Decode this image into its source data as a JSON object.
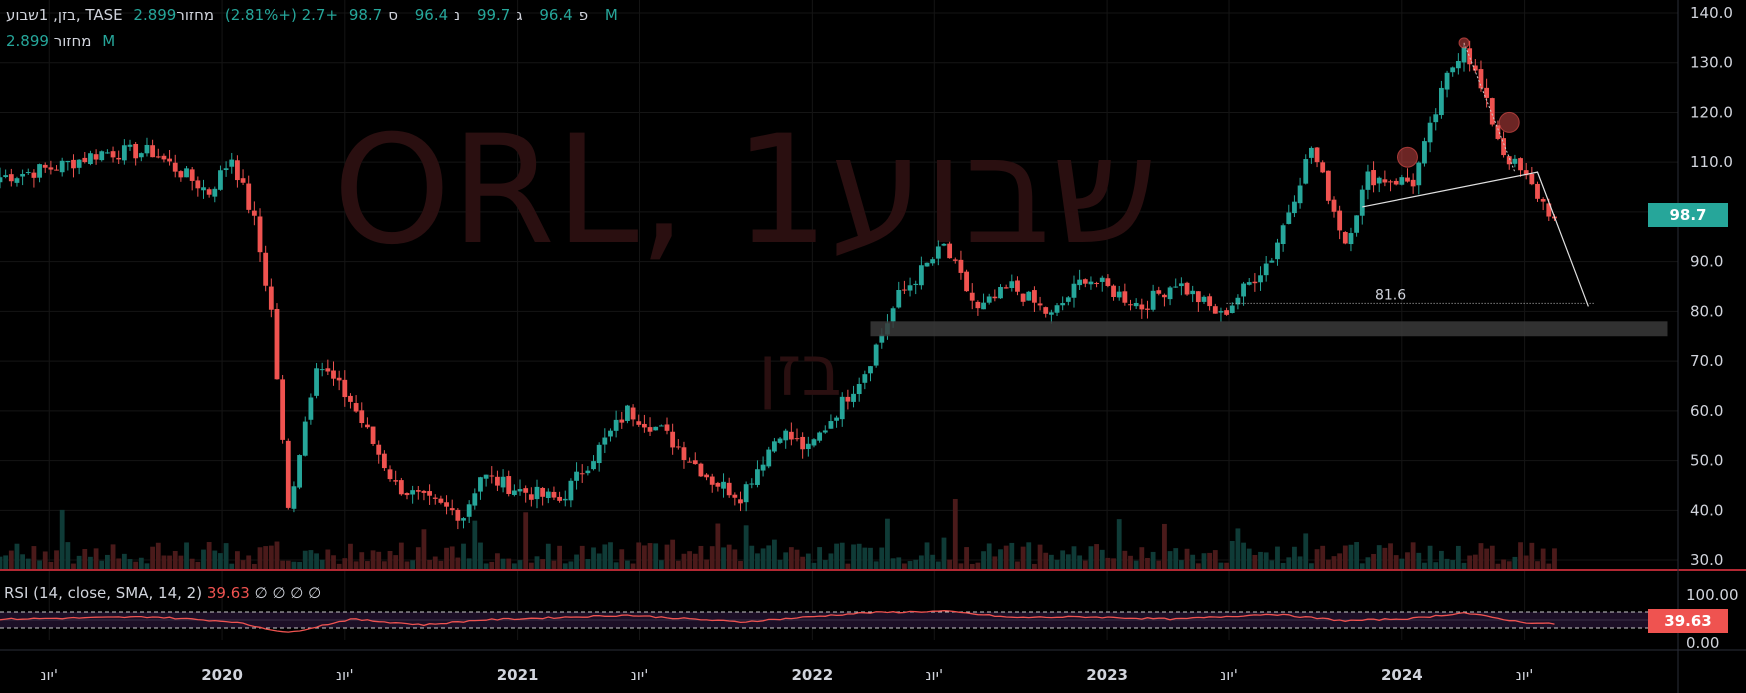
{
  "legend": {
    "symbol": "בזן, 1שבוע, TASE",
    "open_label": "פ",
    "open": "96.4",
    "high_label": "ג",
    "high": "99.7",
    "low_label": "נ",
    "low": "96.4",
    "close_label": "ס",
    "close": "98.7",
    "change": "+2.7 (+2.81%)",
    "volume_label": "מחזור",
    "volume": "2.899 M"
  },
  "watermark": {
    "main": "ORL, 1שבוע",
    "sub": "בזן"
  },
  "rsi_legend": {
    "label": "RSI (14, close, SMA, 14, 2)",
    "value": "39.63",
    "placeholders": [
      "∅",
      "∅",
      "∅",
      "∅"
    ]
  },
  "price_badge": "98.7",
  "rsi_badge": "39.63",
  "annotation_level": "81.6",
  "colors": {
    "up": "#26a69a",
    "down": "#ef5350",
    "rsi": "#ef5350",
    "badge_up": "#26a69a"
  },
  "chart_data": {
    "type": "candlestick",
    "y_axis_ticks": [
      30,
      40,
      50,
      60,
      70,
      80,
      90,
      100,
      110,
      120,
      130,
      140
    ],
    "y_tick_labels": [
      "30.0",
      "40.0",
      "50.0",
      "60.0",
      "70.0",
      "80.0",
      "90.0",
      "",
      "110.0",
      "120.0",
      "130.0",
      "140.0"
    ],
    "ylim": [
      28,
      141
    ],
    "rsi_ticks": [
      0,
      100
    ],
    "rsi_tick_labels": [
      "0.00",
      "100.00"
    ],
    "rsi_bands": [
      30,
      70
    ],
    "x_labels": [
      "יונ'",
      "2020",
      "יונ'",
      "2021",
      "יונ'",
      "2022",
      "יונ'",
      "2023",
      "יונ'",
      "2024",
      "יונ'"
    ],
    "xlim": [
      "2019-04-01",
      "2024-12-08"
    ],
    "x_label_dates": [
      "2019-06-01",
      "2020-01-01",
      "2020-06-01",
      "2021-01-01",
      "2021-06-01",
      "2022-01-01",
      "2022-06-01",
      "2023-01-01",
      "2023-06-01",
      "2024-01-01",
      "2024-06-01"
    ],
    "weekly_close_anchors": [
      [
        "2019-04-01",
        107
      ],
      [
        "2019-06-10",
        109
      ],
      [
        "2019-08-05",
        112
      ],
      [
        "2019-10-07",
        112
      ],
      [
        "2019-12-16",
        104
      ],
      [
        "2020-01-13",
        111
      ],
      [
        "2020-02-10",
        98
      ],
      [
        "2020-03-02",
        80
      ],
      [
        "2020-03-23",
        40
      ],
      [
        "2020-04-27",
        70
      ],
      [
        "2020-06-08",
        62
      ],
      [
        "2020-08-03",
        45
      ],
      [
        "2020-09-07",
        42
      ],
      [
        "2020-10-26",
        39
      ],
      [
        "2020-11-16",
        47
      ],
      [
        "2021-01-04",
        44
      ],
      [
        "2021-02-22",
        42
      ],
      [
        "2021-05-17",
        60
      ],
      [
        "2021-06-28",
        56
      ],
      [
        "2021-08-30",
        46
      ],
      [
        "2021-10-04",
        43
      ],
      [
        "2021-11-22",
        56
      ],
      [
        "2021-12-27",
        52
      ],
      [
        "2022-03-07",
        68
      ],
      [
        "2022-04-18",
        83
      ],
      [
        "2022-06-13",
        93
      ],
      [
        "2022-07-25",
        80
      ],
      [
        "2022-09-05",
        85
      ],
      [
        "2022-10-24",
        79
      ],
      [
        "2022-12-05",
        87
      ],
      [
        "2023-02-13",
        81
      ],
      [
        "2023-03-27",
        86
      ],
      [
        "2023-05-22",
        79
      ],
      [
        "2023-07-24",
        91
      ],
      [
        "2023-09-11",
        113
      ],
      [
        "2023-10-23",
        94
      ],
      [
        "2023-11-20",
        107
      ],
      [
        "2024-01-15",
        106
      ],
      [
        "2024-02-26",
        127
      ],
      [
        "2024-03-18",
        134
      ],
      [
        "2024-05-06",
        112
      ],
      [
        "2024-05-27",
        108
      ],
      [
        "2024-07-08",
        98.7
      ]
    ],
    "rsi_anchors": [
      [
        "2019-04-01",
        52
      ],
      [
        "2019-10-07",
        58
      ],
      [
        "2020-01-13",
        46
      ],
      [
        "2020-03-23",
        18
      ],
      [
        "2020-06-08",
        52
      ],
      [
        "2020-09-07",
        38
      ],
      [
        "2020-11-16",
        50
      ],
      [
        "2021-05-17",
        62
      ],
      [
        "2021-10-04",
        45
      ],
      [
        "2022-03-07",
        68
      ],
      [
        "2022-06-13",
        72
      ],
      [
        "2022-09-05",
        56
      ],
      [
        "2022-12-05",
        58
      ],
      [
        "2023-03-27",
        52
      ],
      [
        "2023-07-24",
        65
      ],
      [
        "2023-10-23",
        48
      ],
      [
        "2024-01-15",
        54
      ],
      [
        "2024-03-18",
        68
      ],
      [
        "2024-05-27",
        45
      ],
      [
        "2024-07-08",
        39.63
      ]
    ],
    "shapes": {
      "support_zone": [
        75,
        78
      ],
      "level_line": 81.6,
      "projection_path": [
        [
          "2023-11-13",
          101
        ],
        [
          "2024-06-17",
          108
        ],
        [
          "2024-08-19",
          81
        ]
      ],
      "pattern_line": [
        [
          "2024-03-18",
          134
        ],
        [
          "2024-05-20",
          108
        ]
      ],
      "markers": [
        [
          "2024-03-18",
          134
        ],
        [
          "2024-01-08",
          111
        ],
        [
          "2024-05-13",
          118
        ]
      ]
    }
  }
}
